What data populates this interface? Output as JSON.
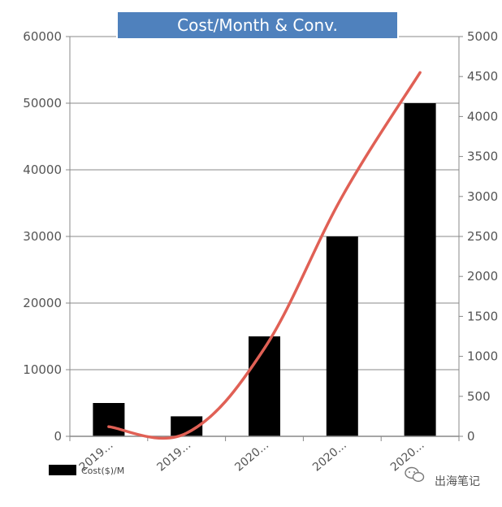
{
  "chart_data": {
    "type": "bar",
    "title": "Cost/Month & Conv.",
    "categories": [
      "2019...",
      "2019...",
      "2020...",
      "2020...",
      "2020..."
    ],
    "series": [
      {
        "name": "Cost($)/M",
        "type": "bar",
        "axis": "left",
        "color": "#000000",
        "values": [
          5000,
          3000,
          15000,
          30000,
          50000
        ]
      },
      {
        "type": "line",
        "axis": "right",
        "color": "#e06055",
        "values": [
          120,
          40,
          1100,
          3000,
          4550
        ]
      }
    ],
    "y_left": {
      "min": 0,
      "max": 60000,
      "ticks": [
        0,
        10000,
        20000,
        30000,
        40000,
        50000,
        60000
      ]
    },
    "y_right": {
      "min": 0,
      "max": 5000,
      "ticks": [
        0,
        500,
        1000,
        1500,
        2000,
        2500,
        3000,
        3500,
        4000,
        4500,
        5000
      ]
    },
    "grid": true,
    "legend": "bottom-left",
    "title_bg": "#4f81bd"
  },
  "watermark": {
    "text": "出海笔记",
    "icon": "wechat-icon"
  }
}
